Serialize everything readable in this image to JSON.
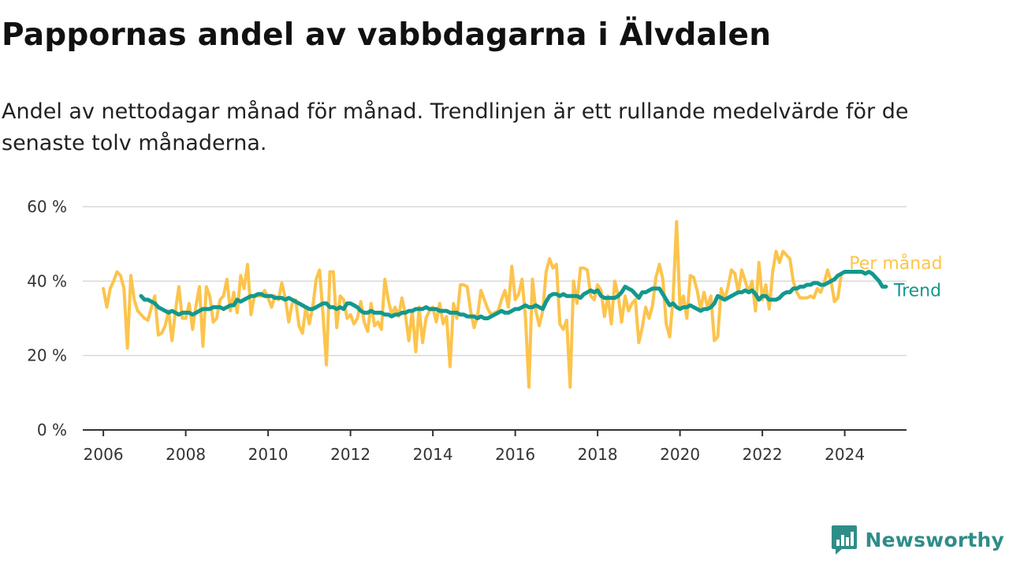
{
  "title": "Pappornas andel av vabbdagarna i Älvdalen",
  "subtitle": "Andel av nettodagar månad för månad. Trendlinjen är ett rullande medelvärde för de senaste tolv månaderna.",
  "brand": "Newsworthy",
  "colors": {
    "monthly": "#fcc44c",
    "trend": "#13988e",
    "grid": "#d9d9d9",
    "axis": "#333333",
    "brand": "#2f8d88"
  },
  "chart_data": {
    "type": "line",
    "xlim": [
      2005.5,
      2025.5
    ],
    "ylim": [
      0,
      60
    ],
    "x_ticks": [
      2006,
      2008,
      2010,
      2012,
      2014,
      2016,
      2018,
      2020,
      2022,
      2024
    ],
    "x_tick_labels": [
      "2006",
      "2008",
      "2010",
      "2012",
      "2014",
      "2016",
      "2018",
      "2020",
      "2022",
      "2024"
    ],
    "y_ticks": [
      0,
      20,
      40,
      60
    ],
    "y_tick_labels": [
      "0 %",
      "20 %",
      "40 %",
      "60 %"
    ],
    "grid": true,
    "series": [
      {
        "name": "Per månad",
        "start": "2006-01",
        "frequency": "monthly",
        "values": [
          38,
          33,
          38,
          40,
          42.5,
          41.5,
          38,
          22,
          41.5,
          35,
          32,
          31,
          30,
          29.5,
          33,
          36,
          25.5,
          26,
          28,
          32,
          24,
          32,
          38.5,
          30,
          30,
          34,
          27,
          33.5,
          38.5,
          22.5,
          38.5,
          36,
          29,
          30,
          35,
          36,
          40.5,
          32,
          37,
          31.5,
          41.5,
          38,
          44.5,
          31,
          36,
          36,
          36,
          37.5,
          35.5,
          33,
          36,
          35,
          39.5,
          35.5,
          29,
          34,
          35,
          28,
          26,
          33,
          28.5,
          33,
          40.5,
          43,
          31,
          17.5,
          42.5,
          42.5,
          27.5,
          36,
          35,
          30,
          31,
          28.5,
          30,
          34.5,
          29,
          26.5,
          34,
          28,
          29,
          27,
          40.5,
          35,
          31,
          33,
          30.5,
          35.5,
          31,
          24,
          32,
          21,
          33,
          23.5,
          30,
          32,
          33,
          29,
          34,
          28.5,
          30.5,
          17,
          34,
          30,
          39,
          39,
          38.5,
          32,
          27.5,
          30.5,
          37.5,
          35,
          32.5,
          31,
          31.5,
          32,
          35,
          37.5,
          33,
          44,
          35,
          36.5,
          40.5,
          30,
          11.5,
          40.5,
          32,
          28,
          32,
          42.5,
          46,
          43.5,
          44.5,
          28.5,
          27,
          29.5,
          11.5,
          40,
          34,
          43.5,
          43.5,
          43,
          36,
          35,
          39,
          37.5,
          30.5,
          36,
          28.5,
          40,
          36,
          29,
          36,
          32,
          34,
          35,
          23.5,
          27.5,
          33,
          30,
          33.5,
          41,
          44.5,
          40.5,
          28.5,
          25,
          35.5,
          56,
          33,
          36,
          30,
          41.5,
          41,
          37.5,
          32.5,
          37,
          33,
          36,
          24,
          25,
          38,
          35,
          38.5,
          43,
          42,
          37,
          43,
          40,
          37,
          40,
          32,
          45,
          35,
          39,
          32.5,
          42.5,
          48,
          45,
          48,
          47,
          46,
          40,
          37,
          35.5,
          35.5,
          35.5,
          36,
          35.5,
          38,
          37,
          39.5,
          43,
          40,
          34.5,
          35.5,
          42
        ]
      },
      {
        "name": "Trend",
        "start": "2006-12",
        "frequency": "monthly",
        "values": [
          36,
          35,
          35,
          34.5,
          34,
          33,
          32.5,
          32,
          31.5,
          32,
          31.5,
          31,
          31.5,
          31.5,
          31.5,
          31,
          31.5,
          32,
          32.5,
          32.5,
          32.5,
          33,
          33,
          33,
          32.5,
          33,
          33.5,
          33.5,
          35,
          34.5,
          35,
          35.5,
          36,
          36,
          36.5,
          36.5,
          36,
          36,
          36,
          35.5,
          35.5,
          35.5,
          35,
          35.5,
          35,
          34.5,
          34,
          33.5,
          33,
          32.5,
          32.5,
          33,
          33.5,
          34,
          34,
          33,
          33,
          32.5,
          33,
          32.5,
          34,
          34,
          33.5,
          33,
          32,
          31.5,
          31.5,
          32,
          31.5,
          31.5,
          31.5,
          31,
          31,
          30.5,
          31,
          31,
          31.5,
          31.5,
          32,
          32,
          32.5,
          32.5,
          32.5,
          33,
          32.5,
          32.5,
          32.5,
          32,
          32,
          32,
          31.5,
          31.5,
          31.5,
          31,
          31,
          30.5,
          30.5,
          30.5,
          30,
          30.5,
          30,
          30,
          30.5,
          31,
          31.5,
          32,
          31.5,
          31.5,
          32,
          32.5,
          32.5,
          33,
          33.5,
          33,
          33,
          33.5,
          33,
          32.5,
          34.5,
          36,
          36.5,
          36.5,
          36,
          36.5,
          36,
          36,
          36,
          36,
          35.5,
          36.5,
          37,
          37.5,
          37,
          37.5,
          36,
          35.5,
          35.5,
          35.5,
          35.5,
          36,
          37,
          38.5,
          38,
          37.5,
          36.5,
          35.5,
          37,
          37,
          37.5,
          38,
          38,
          38,
          36.5,
          35,
          33.5,
          34,
          33,
          32.5,
          33,
          33,
          33.5,
          33,
          32.5,
          32,
          32.5,
          32.5,
          33,
          34,
          36,
          35.5,
          35,
          35.5,
          36,
          36.5,
          37,
          37,
          37.5,
          37,
          37.5,
          36.5,
          35,
          36,
          36,
          35,
          35,
          35,
          35.5,
          36.5,
          37,
          37,
          38,
          38,
          38.5,
          38.5,
          39,
          39,
          39.5,
          39.5,
          39,
          39,
          39.5,
          40,
          40.5,
          41.5,
          42,
          42.5,
          42.5,
          42.5,
          42.5,
          42.5,
          42.5,
          42,
          42.5,
          42,
          41,
          40,
          38.5,
          38.5
        ]
      }
    ]
  }
}
